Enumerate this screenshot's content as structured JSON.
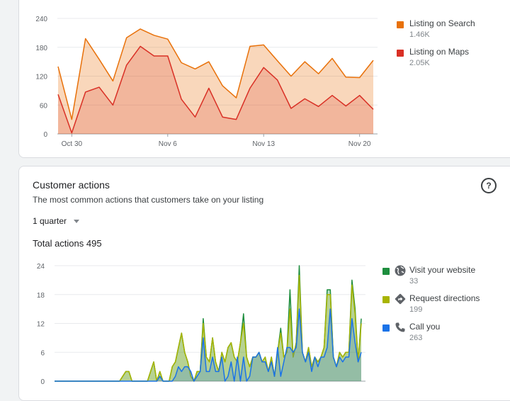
{
  "colors": {
    "search": "#e8710a",
    "maps": "#d93025",
    "website": "#1e8e3e",
    "directions": "#a8b400",
    "call": "#1a73e8"
  },
  "views_card": {
    "legend": [
      {
        "label": "Listing on Search",
        "value": "1.46K",
        "color": "#e8710a"
      },
      {
        "label": "Listing on Maps",
        "value": "2.05K",
        "color": "#d93025"
      }
    ]
  },
  "actions_card": {
    "title": "Customer actions",
    "subtitle": "The most common actions that customers take on your listing",
    "period": "1 quarter",
    "total": "Total actions 495",
    "help_icon": "help-circle-icon",
    "legend": [
      {
        "label": "Visit your website",
        "value": "33",
        "color": "#1e8e3e",
        "icon": "globe-icon"
      },
      {
        "label": "Request directions",
        "value": "199",
        "color": "#a8b400",
        "icon": "directions-icon"
      },
      {
        "label": "Call you",
        "value": "263",
        "color": "#1a73e8",
        "icon": "phone-icon"
      }
    ]
  },
  "chart_data": [
    {
      "type": "area",
      "x_labels": [
        "Oct 30",
        "Nov 6",
        "Nov 13",
        "Nov 20"
      ],
      "y_ticks": [
        0,
        60,
        120,
        180,
        240
      ],
      "ylim": [
        0,
        240
      ],
      "series": [
        {
          "name": "Listing on Search",
          "values": [
            140,
            30,
            198,
            155,
            110,
            200,
            218,
            205,
            197,
            148,
            135,
            150,
            100,
            75,
            182,
            185,
            152,
            120,
            150,
            125,
            157,
            118,
            117,
            153
          ]
        },
        {
          "name": "Listing on Maps",
          "values": [
            82,
            2,
            87,
            97,
            60,
            143,
            182,
            162,
            162,
            72,
            35,
            95,
            35,
            30,
            95,
            138,
            112,
            53,
            73,
            57,
            80,
            58,
            80,
            51
          ]
        }
      ]
    },
    {
      "type": "area",
      "y_ticks": [
        0,
        6,
        12,
        18,
        24
      ],
      "ylim": [
        0,
        24
      ],
      "series": [
        {
          "name": "Call you",
          "values": [
            0,
            0,
            0,
            0,
            0,
            0,
            0,
            0,
            0,
            0,
            0,
            0,
            0,
            0,
            0,
            0,
            0,
            0,
            0,
            0,
            0,
            0,
            0,
            0,
            0,
            0,
            0,
            0,
            0,
            0,
            0,
            0,
            0,
            0,
            1,
            0,
            0,
            0,
            0,
            1,
            3,
            2,
            3,
            3,
            2,
            0,
            1,
            2,
            9,
            2,
            2,
            5,
            2,
            2,
            5,
            0,
            1,
            4,
            0,
            5,
            0,
            5,
            0,
            1,
            5,
            5,
            6,
            4,
            4,
            2,
            4,
            1,
            7,
            1,
            4,
            7,
            7,
            6,
            7,
            15,
            6,
            4,
            6,
            2,
            5,
            3,
            5,
            5,
            7,
            15,
            5,
            3,
            5,
            4,
            5,
            5,
            13,
            8,
            4,
            6
          ]
        },
        {
          "name": "Request directions",
          "values": [
            0,
            0,
            0,
            0,
            0,
            0,
            0,
            0,
            0,
            0,
            0,
            0,
            0,
            0,
            0,
            0,
            0,
            0,
            0,
            0,
            0,
            0,
            1,
            2,
            2,
            0,
            0,
            0,
            0,
            0,
            0,
            2,
            4,
            0,
            2,
            0,
            0,
            0,
            3,
            4,
            7,
            10,
            6,
            4,
            1,
            0,
            2,
            2,
            12,
            5,
            4,
            9,
            4,
            2,
            6,
            4,
            7,
            8,
            5,
            4,
            8,
            12,
            5,
            3,
            5,
            5,
            6,
            4,
            5,
            2,
            5,
            1,
            6,
            10,
            5,
            6,
            15,
            5,
            8,
            22,
            6,
            4,
            7,
            3,
            5,
            4,
            5,
            7,
            18,
            18,
            5,
            3,
            6,
            5,
            6,
            6,
            20,
            14,
            4,
            12
          ]
        },
        {
          "name": "Visit your website",
          "values": [
            0,
            0,
            0,
            0,
            0,
            0,
            0,
            0,
            0,
            0,
            0,
            0,
            0,
            0,
            0,
            0,
            0,
            0,
            0,
            0,
            0,
            0,
            1,
            2,
            2,
            0,
            0,
            0,
            0,
            0,
            0,
            2,
            4,
            0,
            2,
            0,
            0,
            0,
            3,
            4,
            7,
            10,
            6,
            4,
            1,
            0,
            2,
            2,
            13,
            5,
            4,
            9,
            4,
            2,
            6,
            4,
            7,
            8,
            5,
            4,
            8,
            14,
            5,
            3,
            5,
            5,
            6,
            4,
            5,
            2,
            5,
            1,
            6,
            11,
            5,
            6,
            19,
            5,
            8,
            24,
            6,
            4,
            7,
            3,
            5,
            4,
            5,
            7,
            19,
            19,
            5,
            3,
            6,
            5,
            6,
            6,
            21,
            15,
            4,
            13
          ]
        }
      ]
    }
  ]
}
